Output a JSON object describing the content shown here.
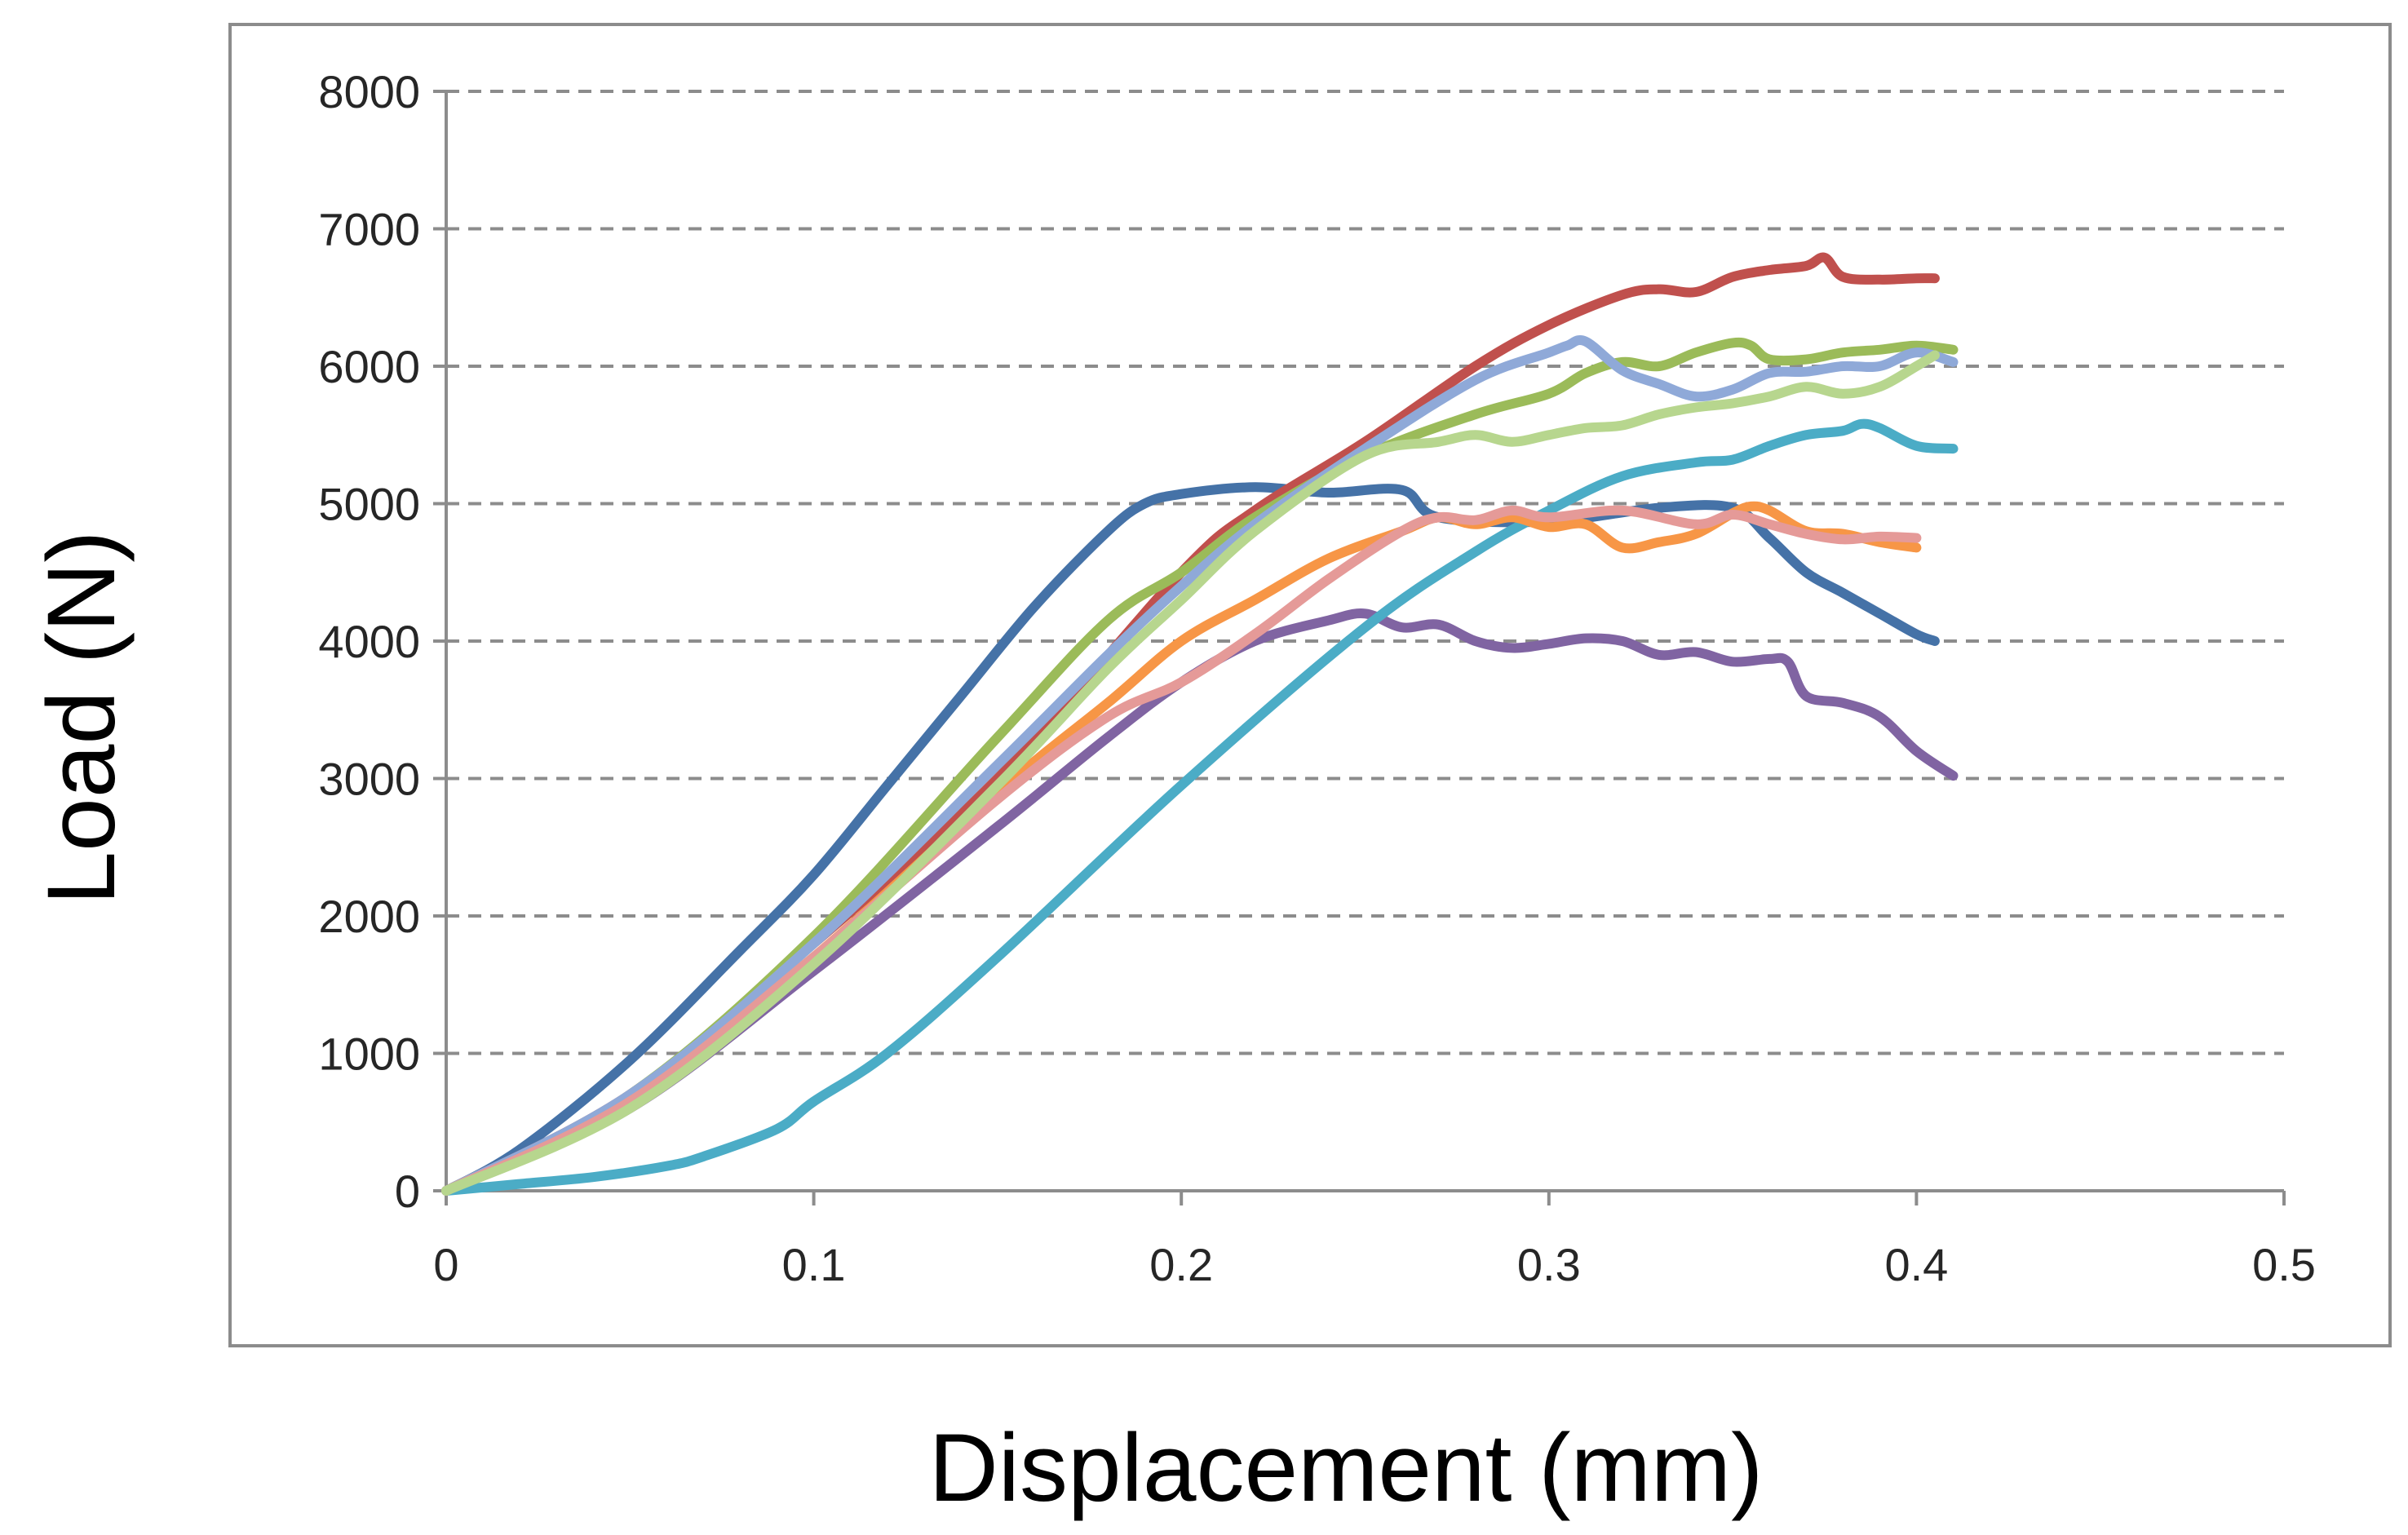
{
  "chart_data": {
    "type": "line",
    "title": "",
    "xlabel": "Displacement (mm)",
    "ylabel": "Load (N)",
    "xlim": [
      0,
      0.5
    ],
    "ylim": [
      0,
      8000
    ],
    "xticks": [
      0,
      0.1,
      0.2,
      0.3,
      0.4,
      0.5
    ],
    "xtick_labels": [
      "0",
      "0.1",
      "0.2",
      "0.3",
      "0.4",
      "0.5"
    ],
    "yticks": [
      0,
      1000,
      2000,
      3000,
      4000,
      5000,
      6000,
      7000,
      8000
    ],
    "ytick_labels": [
      "0",
      "1000",
      "2000",
      "3000",
      "4000",
      "5000",
      "6000",
      "7000",
      "8000"
    ],
    "grid": "horizontal dashed",
    "legend": "none",
    "series": [
      {
        "name": "dark blue",
        "color": "#4572a7",
        "x": [
          0,
          0.02,
          0.05,
          0.08,
          0.1,
          0.12,
          0.14,
          0.16,
          0.18,
          0.19,
          0.2,
          0.22,
          0.24,
          0.26,
          0.27,
          0.3,
          0.33,
          0.35,
          0.36,
          0.37,
          0.38,
          0.39,
          0.4,
          0.405
        ],
        "y": [
          0,
          300,
          950,
          1750,
          2300,
          2950,
          3600,
          4250,
          4800,
          5000,
          5070,
          5120,
          5080,
          5100,
          4900,
          4870,
          4970,
          4970,
          4750,
          4500,
          4350,
          4200,
          4050,
          4000
        ]
      },
      {
        "name": "red",
        "color": "#c0504d",
        "x": [
          0,
          0.05,
          0.1,
          0.15,
          0.2,
          0.22,
          0.25,
          0.28,
          0.3,
          0.32,
          0.33,
          0.34,
          0.35,
          0.36,
          0.37,
          0.375,
          0.38,
          0.39,
          0.4,
          0.405
        ],
        "y": [
          0,
          700,
          1800,
          3000,
          4500,
          4950,
          5450,
          6000,
          6300,
          6520,
          6560,
          6540,
          6650,
          6700,
          6730,
          6790,
          6650,
          6630,
          6640,
          6640
        ]
      },
      {
        "name": "green",
        "color": "#9bbb59",
        "x": [
          0,
          0.05,
          0.1,
          0.15,
          0.18,
          0.2,
          0.22,
          0.25,
          0.28,
          0.3,
          0.31,
          0.32,
          0.33,
          0.34,
          0.35,
          0.355,
          0.36,
          0.37,
          0.38,
          0.39,
          0.4,
          0.41
        ],
        "y": [
          0,
          700,
          1850,
          3300,
          4150,
          4500,
          4900,
          5350,
          5650,
          5800,
          5950,
          6030,
          6000,
          6100,
          6170,
          6150,
          6050,
          6050,
          6100,
          6120,
          6150,
          6120
        ]
      },
      {
        "name": "purple",
        "color": "#8064a2",
        "x": [
          0,
          0.05,
          0.1,
          0.15,
          0.18,
          0.2,
          0.22,
          0.24,
          0.25,
          0.26,
          0.27,
          0.28,
          0.29,
          0.3,
          0.31,
          0.32,
          0.33,
          0.34,
          0.35,
          0.36,
          0.365,
          0.37,
          0.38,
          0.39,
          0.4,
          0.41
        ],
        "y": [
          0,
          600,
          1600,
          2650,
          3300,
          3700,
          4000,
          4150,
          4200,
          4100,
          4120,
          4000,
          3950,
          3980,
          4020,
          4000,
          3900,
          3920,
          3850,
          3870,
          3850,
          3600,
          3550,
          3450,
          3200,
          3020
        ]
      },
      {
        "name": "teal",
        "color": "#4bacc6",
        "x": [
          0,
          0.02,
          0.04,
          0.06,
          0.07,
          0.09,
          0.1,
          0.12,
          0.15,
          0.2,
          0.25,
          0.28,
          0.3,
          0.32,
          0.34,
          0.35,
          0.36,
          0.37,
          0.38,
          0.385,
          0.39,
          0.4,
          0.41
        ],
        "y": [
          0,
          50,
          100,
          180,
          250,
          450,
          650,
          1000,
          1700,
          2950,
          4100,
          4650,
          4950,
          5200,
          5300,
          5320,
          5420,
          5500,
          5530,
          5580,
          5550,
          5420,
          5400
        ]
      },
      {
        "name": "orange",
        "color": "#f79646",
        "x": [
          0,
          0.05,
          0.1,
          0.15,
          0.18,
          0.2,
          0.22,
          0.24,
          0.26,
          0.27,
          0.28,
          0.29,
          0.3,
          0.31,
          0.32,
          0.33,
          0.34,
          0.35,
          0.355,
          0.36,
          0.37,
          0.38,
          0.39,
          0.4
        ],
        "y": [
          0,
          650,
          1700,
          2900,
          3550,
          4000,
          4300,
          4600,
          4800,
          4900,
          4850,
          4900,
          4830,
          4850,
          4680,
          4720,
          4780,
          4930,
          4980,
          4950,
          4800,
          4780,
          4720,
          4680
        ]
      },
      {
        "name": "light blue",
        "color": "#8fa9d8",
        "x": [
          0,
          0.05,
          0.1,
          0.15,
          0.18,
          0.2,
          0.22,
          0.25,
          0.28,
          0.3,
          0.305,
          0.31,
          0.32,
          0.33,
          0.34,
          0.35,
          0.36,
          0.37,
          0.38,
          0.39,
          0.4,
          0.41
        ],
        "y": [
          0,
          700,
          1800,
          3100,
          3900,
          4400,
          4850,
          5400,
          5900,
          6100,
          6150,
          6180,
          5970,
          5870,
          5780,
          5830,
          5950,
          5960,
          6000,
          6000,
          6100,
          6030
        ]
      },
      {
        "name": "pink",
        "color": "#e59a98",
        "x": [
          0,
          0.05,
          0.1,
          0.15,
          0.18,
          0.2,
          0.22,
          0.24,
          0.26,
          0.27,
          0.28,
          0.29,
          0.3,
          0.32,
          0.34,
          0.35,
          0.36,
          0.37,
          0.38,
          0.39,
          0.4
        ],
        "y": [
          0,
          650,
          1700,
          2850,
          3450,
          3700,
          4050,
          4450,
          4800,
          4900,
          4880,
          4950,
          4900,
          4950,
          4850,
          4920,
          4850,
          4780,
          4740,
          4760,
          4750
        ]
      },
      {
        "name": "light green",
        "color": "#b7d68e",
        "x": [
          0,
          0.05,
          0.1,
          0.15,
          0.18,
          0.2,
          0.22,
          0.25,
          0.27,
          0.28,
          0.29,
          0.3,
          0.31,
          0.32,
          0.33,
          0.34,
          0.35,
          0.36,
          0.37,
          0.38,
          0.39,
          0.4,
          0.405
        ],
        "y": [
          0,
          600,
          1650,
          2950,
          3800,
          4300,
          4800,
          5350,
          5450,
          5500,
          5450,
          5500,
          5550,
          5570,
          5650,
          5700,
          5730,
          5780,
          5850,
          5800,
          5850,
          6000,
          6080
        ]
      }
    ]
  }
}
